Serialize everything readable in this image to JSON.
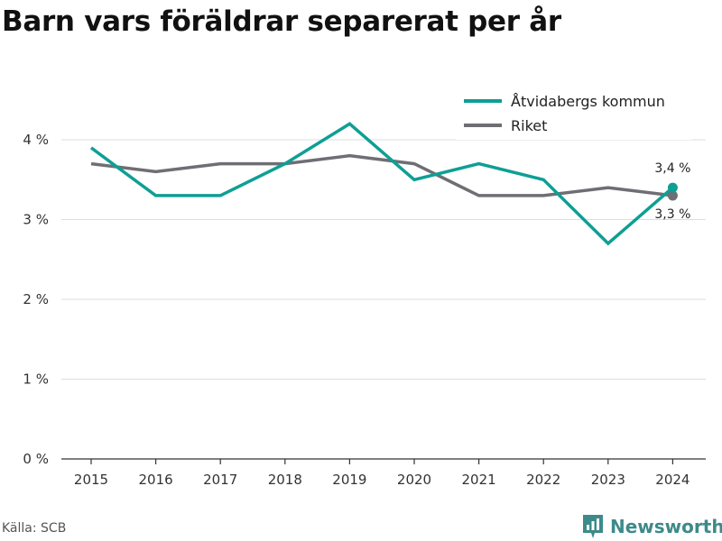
{
  "header": {
    "title": "Barn vars föräldrar separerat per år"
  },
  "footer": {
    "source": "Källa: SCB",
    "brand": "Newsworthy"
  },
  "colors": {
    "kommun": "#0e9f94",
    "riket": "#6f6e74",
    "grid": "#dddddd",
    "axis": "#333333",
    "brand": "#3d8a8a"
  },
  "icons": {
    "brand_logo": "bar-chart-bubble-icon"
  },
  "chart_data": {
    "type": "line",
    "x": [
      "2015",
      "2016",
      "2017",
      "2018",
      "2019",
      "2020",
      "2021",
      "2022",
      "2023",
      "2024"
    ],
    "series": [
      {
        "name": "Åtvidabergs kommun",
        "values": [
          3.9,
          3.3,
          3.3,
          3.7,
          4.2,
          3.5,
          3.7,
          3.5,
          2.7,
          3.4
        ],
        "end_label": "3,4 %"
      },
      {
        "name": "Riket",
        "values": [
          3.7,
          3.6,
          3.7,
          3.7,
          3.8,
          3.7,
          3.3,
          3.3,
          3.4,
          3.3
        ],
        "end_label": "3,3 %"
      }
    ],
    "yticks": [
      0,
      1,
      2,
      3,
      4
    ],
    "ytick_labels": [
      "0 %",
      "1 %",
      "2 %",
      "3 %",
      "4 %"
    ],
    "ylim": [
      0,
      4.6
    ],
    "grid": "horizontal",
    "legend": "top-right"
  }
}
